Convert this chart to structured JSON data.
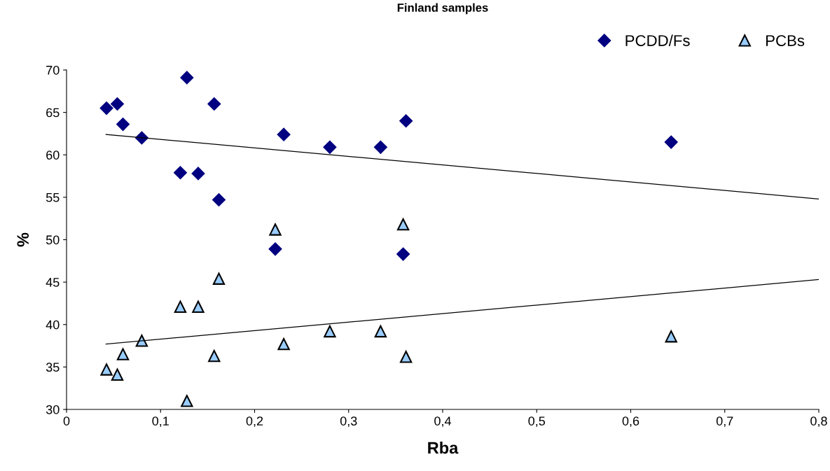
{
  "chart_data": {
    "type": "scatter",
    "title": "Finland samples",
    "xlabel": "Rba",
    "ylabel": "%",
    "xlim": [
      0,
      0.8
    ],
    "ylim": [
      30,
      70
    ],
    "xticks": [
      0,
      {
        "value": 0.1,
        "label": "0,1"
      },
      {
        "value": 0.2,
        "label": "0,2"
      },
      {
        "value": 0.3,
        "label": "0,3"
      },
      {
        "value": 0.4,
        "label": "0,4"
      },
      {
        "value": 0.5,
        "label": "0,5"
      },
      {
        "value": 0.6,
        "label": "0,6"
      },
      {
        "value": 0.7,
        "label": "0,7"
      },
      {
        "value": 0.8,
        "label": "0,8"
      }
    ],
    "yticks": [
      30,
      35,
      40,
      45,
      50,
      55,
      60,
      65,
      70
    ],
    "grid": false,
    "legend": "top right",
    "series": [
      {
        "name": "PCDD/Fs",
        "marker": "diamond",
        "color": "#000080",
        "x": [
          0.0425,
          0.054,
          0.06,
          0.08,
          0.128,
          0.121,
          0.14,
          0.157,
          0.162,
          0.222,
          0.231,
          0.28,
          0.334,
          0.358,
          0.361,
          0.643
        ],
        "values": [
          65.5,
          66.0,
          63.6,
          62.0,
          69.1,
          57.9,
          57.8,
          66.0,
          54.7,
          48.9,
          62.4,
          60.9,
          60.9,
          48.3,
          64.0,
          61.5
        ]
      },
      {
        "name": "PCBs",
        "marker": "triangle",
        "color": "#99ccff",
        "x": [
          0.0425,
          0.054,
          0.06,
          0.08,
          0.128,
          0.121,
          0.14,
          0.157,
          0.162,
          0.222,
          0.231,
          0.28,
          0.334,
          0.358,
          0.361,
          0.643
        ],
        "values": [
          34.7,
          34.1,
          36.5,
          38.1,
          31.0,
          42.1,
          42.1,
          36.3,
          45.4,
          51.2,
          37.7,
          39.2,
          39.2,
          51.8,
          36.2,
          38.6
        ]
      },
      {
        "type": "line",
        "marker": "none",
        "line_style": "solid",
        "color": "#000000",
        "x": [
          0.042,
          0.8
        ],
        "values": [
          62.4,
          54.8
        ]
      },
      {
        "type": "line",
        "marker": "none",
        "line_style": "solid",
        "color": "#000000",
        "x": [
          0.042,
          0.8
        ],
        "values": [
          37.7,
          45.3
        ]
      }
    ]
  }
}
